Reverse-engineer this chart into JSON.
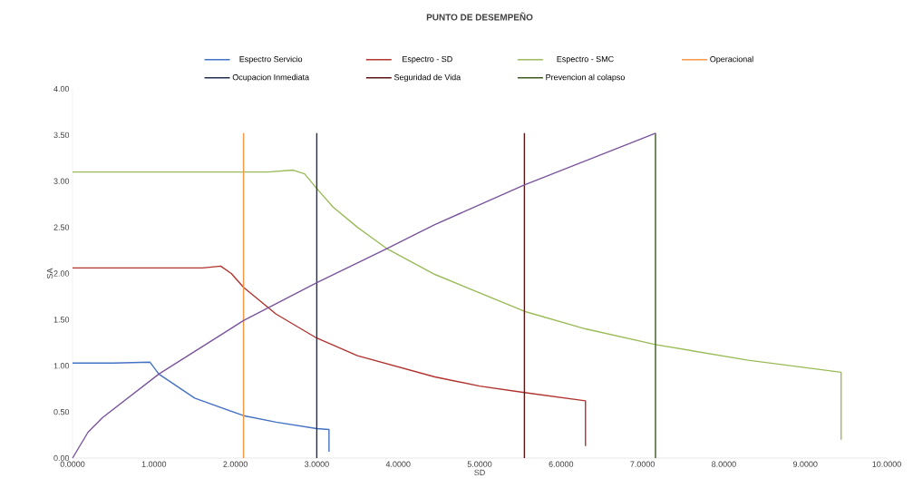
{
  "chart_data": {
    "type": "line",
    "title": "PUNTO DE DESEMPEÑO",
    "xlabel": "SD",
    "ylabel": "SA",
    "xlim": [
      0,
      10
    ],
    "ylim": [
      0,
      4
    ],
    "xticks": [
      {
        "value": 0,
        "label": "0.0000"
      },
      {
        "value": 1,
        "label": "1.0000"
      },
      {
        "value": 2,
        "label": "2.0000"
      },
      {
        "value": 3,
        "label": "3.0000"
      },
      {
        "value": 4,
        "label": "4.0000"
      },
      {
        "value": 5,
        "label": "5.0000"
      },
      {
        "value": 6,
        "label": "6.0000"
      },
      {
        "value": 7,
        "label": "7.0000"
      },
      {
        "value": 8,
        "label": "8.0000"
      },
      {
        "value": 9,
        "label": "9.0000"
      },
      {
        "value": 10,
        "label": "10.0000"
      }
    ],
    "yticks": [
      {
        "value": 0,
        "label": "0.00"
      },
      {
        "value": 0.5,
        "label": "0.50"
      },
      {
        "value": 1,
        "label": "1.00"
      },
      {
        "value": 1.5,
        "label": "1.50"
      },
      {
        "value": 2,
        "label": "2.00"
      },
      {
        "value": 2.5,
        "label": "2.50"
      },
      {
        "value": 3,
        "label": "3.00"
      },
      {
        "value": 3.5,
        "label": "3.50"
      },
      {
        "value": 4,
        "label": "4.00"
      }
    ],
    "legend": "top",
    "marker": "none",
    "series": [
      {
        "name": "Espectro Servicio",
        "color": "#4472c4",
        "x": [
          0,
          0.5,
          0.95,
          1.06,
          1.5,
          2.1,
          2.5,
          3.0,
          3.15,
          3.15
        ],
        "values": [
          1.03,
          1.03,
          1.04,
          0.91,
          0.65,
          0.46,
          0.39,
          0.32,
          0.31,
          0.07
        ]
      },
      {
        "name": "Espectro - SD",
        "color": "#b0332e",
        "x": [
          0,
          1.0,
          1.6,
          1.82,
          1.95,
          2.1,
          2.5,
          3.0,
          3.5,
          4.45,
          5.0,
          5.55,
          6.3,
          6.3
        ],
        "values": [
          2.06,
          2.06,
          2.06,
          2.08,
          2.0,
          1.85,
          1.56,
          1.3,
          1.11,
          0.88,
          0.78,
          0.71,
          0.62,
          0.13
        ]
      },
      {
        "name": "Espectro - SMC",
        "color": "#9bbb59",
        "x": [
          0,
          1.2,
          2.4,
          2.71,
          2.85,
          3.0,
          3.2,
          3.5,
          3.86,
          4.45,
          5.55,
          6.3,
          7.16,
          8.3,
          9.44,
          9.44
        ],
        "values": [
          3.1,
          3.1,
          3.1,
          3.12,
          3.08,
          2.92,
          2.72,
          2.5,
          2.27,
          1.99,
          1.59,
          1.4,
          1.23,
          1.06,
          0.93,
          0.2
        ]
      },
      {
        "name": "Operacional",
        "color": "#f79646",
        "x": [
          2.1,
          2.1
        ],
        "values": [
          0,
          3.52
        ]
      },
      {
        "name": "Ocupacion Inmediata",
        "color": "#1f2d4e",
        "x": [
          3.0,
          3.0
        ],
        "values": [
          0,
          3.52
        ]
      },
      {
        "name": "Seguridad de Vida",
        "color": "#5a1414",
        "x": [
          5.55,
          5.55
        ],
        "values": [
          0,
          3.52
        ]
      },
      {
        "name": "Prevencion al colapso",
        "color": "#3c5a1e",
        "x": [
          7.16,
          7.16
        ],
        "values": [
          0,
          3.52
        ]
      },
      {
        "color": "#7a559e",
        "x": [
          0,
          0.19,
          0.37,
          1.06,
          2.1,
          3.0,
          3.86,
          4.45,
          5.55,
          7.16
        ],
        "values": [
          0,
          0.28,
          0.44,
          0.91,
          1.49,
          1.9,
          2.27,
          2.53,
          2.96,
          3.52
        ]
      }
    ]
  }
}
